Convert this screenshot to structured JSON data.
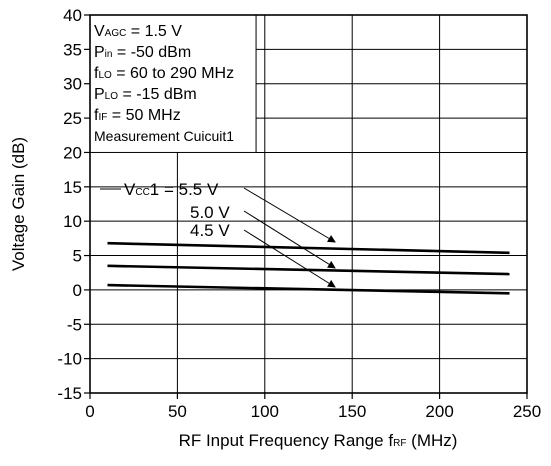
{
  "chart_data": {
    "type": "line",
    "xlabel": "RF Input Frequency Range",
    "xlabel_symbol": {
      "main": "f",
      "sub": "RF",
      "unit": "(MHz)"
    },
    "ylabel": "Voltage Gain  (dB)",
    "xlim": [
      0,
      250
    ],
    "ylim": [
      -15,
      40
    ],
    "xticks": [
      0,
      50,
      100,
      150,
      200,
      250
    ],
    "yticks": [
      -15,
      -10,
      -5,
      0,
      5,
      10,
      15,
      20,
      25,
      30,
      35,
      40
    ],
    "grid": true,
    "conditions": [
      {
        "main": "V",
        "sub": "AGC",
        "rest": " = 1.5 V"
      },
      {
        "main": "P",
        "sub": "in",
        "rest": " = -50 dBm"
      },
      {
        "main": "f",
        "sub": "LO",
        "rest": " = 60 to 290 MHz"
      },
      {
        "main": "P",
        "sub": "LO",
        "rest": " = -15 dBm"
      },
      {
        "main": "f",
        "sub": "IF",
        "rest": " = 50 MHz"
      },
      {
        "main": "Measurement Cuicuit1",
        "sub": "",
        "rest": ""
      }
    ],
    "series_label_prefix": {
      "main": "V",
      "sub": "CC",
      "rest": "1 = "
    },
    "series": [
      {
        "name": "5.5 V",
        "x": [
          10,
          240
        ],
        "y": [
          6.8,
          5.4
        ]
      },
      {
        "name": "5.0 V",
        "x": [
          10,
          240
        ],
        "y": [
          3.5,
          2.3
        ]
      },
      {
        "name": "4.5 V",
        "x": [
          10,
          240
        ],
        "y": [
          0.7,
          -0.5
        ]
      }
    ]
  }
}
